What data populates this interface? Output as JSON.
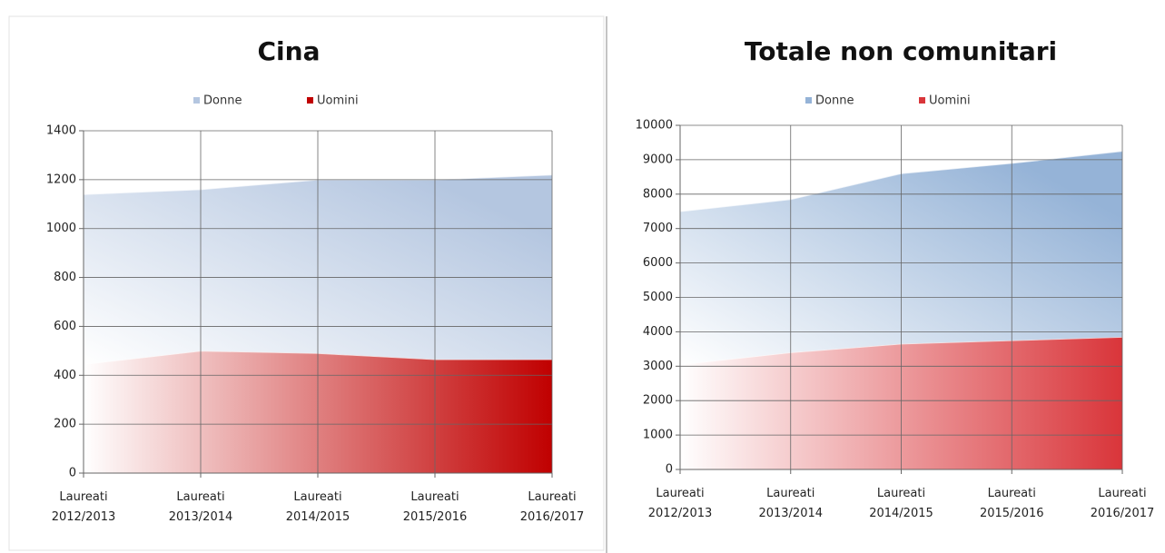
{
  "chart_data": [
    {
      "type": "area",
      "title": "Cina",
      "categories": [
        "Laureati 2012/2013",
        "Laureati 2013/2014",
        "Laureati 2014/2015",
        "Laureati 2015/2016",
        "Laureati 2016/2017"
      ],
      "series": [
        {
          "name": "Donne",
          "color": "#b4c6e0",
          "values": [
            695,
            660,
            710,
            735,
            755
          ]
        },
        {
          "name": "Uomini",
          "color": "#c00000",
          "values": [
            445,
            500,
            490,
            465,
            465
          ]
        }
      ],
      "stacked": true,
      "ylim": [
        0,
        1400
      ],
      "yticks": [
        0,
        200,
        400,
        600,
        800,
        1000,
        1200,
        1400
      ],
      "grid": true,
      "legend": "top"
    },
    {
      "type": "area",
      "title": "Totale non comunitari",
      "categories": [
        "Laureati 2012/2013",
        "Laureati 2013/2014",
        "Laureati 2014/2015",
        "Laureati 2015/2016",
        "Laureati 2016/2017"
      ],
      "series": [
        {
          "name": "Donne",
          "color": "#95b3d7",
          "values": [
            4450,
            4450,
            4950,
            5150,
            5400
          ]
        },
        {
          "name": "Uomini",
          "color": "#d9353a",
          "values": [
            3050,
            3400,
            3650,
            3750,
            3850
          ]
        }
      ],
      "stacked": true,
      "ylim": [
        0,
        10000
      ],
      "yticks": [
        0,
        1000,
        2000,
        3000,
        4000,
        5000,
        6000,
        7000,
        8000,
        9000,
        10000
      ],
      "grid": true,
      "legend": "top"
    }
  ]
}
